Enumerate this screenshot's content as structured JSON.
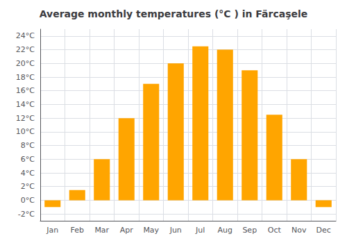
{
  "chart_data": {
    "type": "bar",
    "title": "Average monthly temperatures (°C ) in Färcaşele",
    "categories": [
      "Jan",
      "Feb",
      "Mar",
      "Apr",
      "May",
      "Jun",
      "Jul",
      "Aug",
      "Sep",
      "Oct",
      "Nov",
      "Dec"
    ],
    "values": [
      -1.0,
      1.5,
      6.0,
      12.0,
      17.0,
      20.0,
      22.5,
      22.0,
      19.0,
      12.5,
      6.0,
      -1.0
    ],
    "color": "#FFA500",
    "ylim": [
      -3,
      25
    ],
    "yticks": [
      {
        "value": -2,
        "label": "-2°C"
      },
      {
        "value": 0,
        "label": "0°C"
      },
      {
        "value": 2,
        "label": "2°C"
      },
      {
        "value": 4,
        "label": "4°C"
      },
      {
        "value": 6,
        "label": "6°C"
      },
      {
        "value": 8,
        "label": "8°C"
      },
      {
        "value": 10,
        "label": "10°C"
      },
      {
        "value": 12,
        "label": "12°C"
      },
      {
        "value": 14,
        "label": "14°C"
      },
      {
        "value": 16,
        "label": "16°C"
      },
      {
        "value": 18,
        "label": "18°C"
      },
      {
        "value": 20,
        "label": "20°C"
      },
      {
        "value": 22,
        "label": "22°C"
      },
      {
        "value": 24,
        "label": "24°C"
      }
    ],
    "grid": true
  }
}
